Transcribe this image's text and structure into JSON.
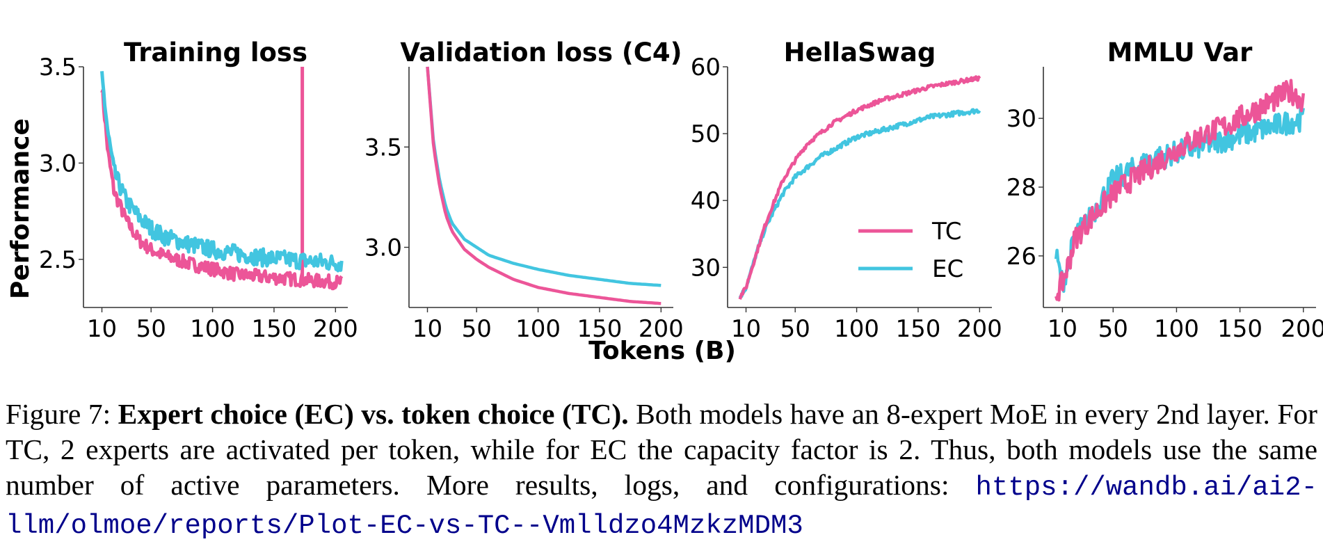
{
  "figure": {
    "ylabel": "Performance",
    "xlabel": "Tokens (B)",
    "legend": [
      "TC",
      "EC"
    ],
    "colors": {
      "TC": "#ec5598",
      "EC": "#42c5e0"
    }
  },
  "chart_data": [
    {
      "type": "line",
      "title": "Training loss",
      "xlim": [
        -5,
        210
      ],
      "ylim": [
        2.25,
        3.5
      ],
      "xticks": [
        10,
        50,
        100,
        150,
        200
      ],
      "yticks": [
        2.5,
        3.0,
        3.5
      ],
      "xticklabels": [
        "10",
        "50",
        "100",
        "150",
        "200"
      ],
      "yticklabels": [
        "2.5",
        "3.0",
        "3.5"
      ],
      "series": [
        {
          "name": "TC",
          "x": [
            10,
            15,
            20,
            30,
            40,
            50,
            60,
            80,
            100,
            120,
            140,
            160,
            180,
            205
          ],
          "y": [
            3.4,
            3.05,
            2.85,
            2.7,
            2.6,
            2.55,
            2.52,
            2.48,
            2.45,
            2.42,
            2.41,
            2.4,
            2.39,
            2.38
          ],
          "noise": 0.035,
          "spike": {
            "x": 173,
            "y": 3.5
          }
        },
        {
          "name": "EC",
          "x": [
            10,
            15,
            20,
            30,
            40,
            50,
            60,
            80,
            100,
            120,
            140,
            160,
            180,
            205
          ],
          "y": [
            3.45,
            3.15,
            2.95,
            2.8,
            2.72,
            2.66,
            2.62,
            2.58,
            2.55,
            2.53,
            2.51,
            2.5,
            2.49,
            2.48
          ],
          "noise": 0.045
        }
      ]
    },
    {
      "type": "line",
      "title": "Validation loss (C4)",
      "xlim": [
        -5,
        210
      ],
      "ylim": [
        2.7,
        3.9
      ],
      "xticks": [
        10,
        50,
        100,
        150,
        200
      ],
      "yticks": [
        3.0,
        3.5
      ],
      "xticklabels": [
        "10",
        "50",
        "100",
        "150",
        "200"
      ],
      "yticklabels": [
        "3.0",
        "3.5"
      ],
      "series": [
        {
          "name": "TC",
          "x": [
            10,
            15,
            20,
            25,
            30,
            40,
            50,
            60,
            80,
            100,
            125,
            150,
            175,
            200
          ],
          "y": [
            3.9,
            3.5,
            3.3,
            3.16,
            3.08,
            2.99,
            2.94,
            2.9,
            2.84,
            2.8,
            2.77,
            2.75,
            2.73,
            2.72
          ]
        },
        {
          "name": "EC",
          "x": [
            10,
            15,
            20,
            25,
            30,
            40,
            50,
            60,
            80,
            100,
            125,
            150,
            175,
            200
          ],
          "y": [
            3.9,
            3.52,
            3.33,
            3.2,
            3.12,
            3.04,
            3.0,
            2.96,
            2.92,
            2.89,
            2.86,
            2.84,
            2.82,
            2.81
          ]
        }
      ]
    },
    {
      "type": "line",
      "title": "HellaSwag",
      "xlim": [
        -5,
        210
      ],
      "ylim": [
        24,
        60
      ],
      "xticks": [
        10,
        50,
        100,
        150,
        200
      ],
      "yticks": [
        30,
        40,
        50,
        60
      ],
      "xticklabels": [
        "10",
        "50",
        "100",
        "150",
        "200"
      ],
      "yticklabels": [
        "30",
        "40",
        "50",
        "60"
      ],
      "legend": {
        "placement": "lower-right"
      },
      "series": [
        {
          "name": "TC",
          "x": [
            5,
            10,
            15,
            20,
            25,
            30,
            40,
            50,
            60,
            70,
            80,
            100,
            120,
            140,
            160,
            180,
            200
          ],
          "y": [
            25.5,
            27,
            30,
            33,
            36,
            38.5,
            43,
            46,
            48.5,
            50,
            51.5,
            53.5,
            55,
            56,
            57,
            57.7,
            58.3
          ],
          "noise": 0.3
        },
        {
          "name": "EC",
          "x": [
            5,
            10,
            15,
            20,
            25,
            30,
            40,
            50,
            60,
            70,
            80,
            100,
            120,
            140,
            160,
            180,
            200
          ],
          "y": [
            25.5,
            27,
            30,
            33,
            35.5,
            37.5,
            41,
            43.5,
            45,
            46.5,
            47.5,
            49.5,
            50.5,
            51.5,
            52.5,
            53,
            53.5
          ],
          "noise": 0.35
        }
      ]
    },
    {
      "type": "line",
      "title": "MMLU Var",
      "xlim": [
        -5,
        210
      ],
      "ylim": [
        24.5,
        31.5
      ],
      "xticks": [
        10,
        50,
        100,
        150,
        200
      ],
      "yticks": [
        26,
        28,
        30
      ],
      "xticklabels": [
        "10",
        "50",
        "100",
        "150",
        "200"
      ],
      "yticklabels": [
        "26",
        "28",
        "30"
      ],
      "series": [
        {
          "name": "TC",
          "x": [
            5,
            10,
            15,
            20,
            30,
            40,
            50,
            60,
            80,
            100,
            120,
            140,
            160,
            180,
            190,
            200
          ],
          "y": [
            24.9,
            25.2,
            25.8,
            26.5,
            27,
            27.4,
            27.8,
            28.1,
            28.6,
            29.1,
            29.5,
            29.8,
            30.2,
            30.6,
            30.8,
            30.5
          ],
          "noise": 0.35
        },
        {
          "name": "EC",
          "x": [
            5,
            10,
            15,
            20,
            30,
            40,
            50,
            60,
            80,
            100,
            120,
            140,
            160,
            180,
            190,
            200
          ],
          "y": [
            26,
            25.2,
            25.8,
            26.6,
            27,
            27.6,
            28.2,
            28.4,
            28.8,
            29,
            29.2,
            29.4,
            29.6,
            29.8,
            29.9,
            30
          ],
          "noise": 0.35
        }
      ]
    }
  ],
  "caption": {
    "label": "Figure 7: ",
    "bold": "Expert choice (EC) vs. token choice (TC).",
    "text": " Both models have an 8-expert MoE in every 2nd layer.  For TC, 2 experts are activated per token, while for EC the capacity factor is 2.  Thus, both models use the same number of active parameters.  More results, logs, and configurations: ",
    "url": "https://wandb.ai/ai2-llm/olmoe/reports/Plot-EC-vs-TC--Vmlldzo4MzkzMDM3"
  }
}
